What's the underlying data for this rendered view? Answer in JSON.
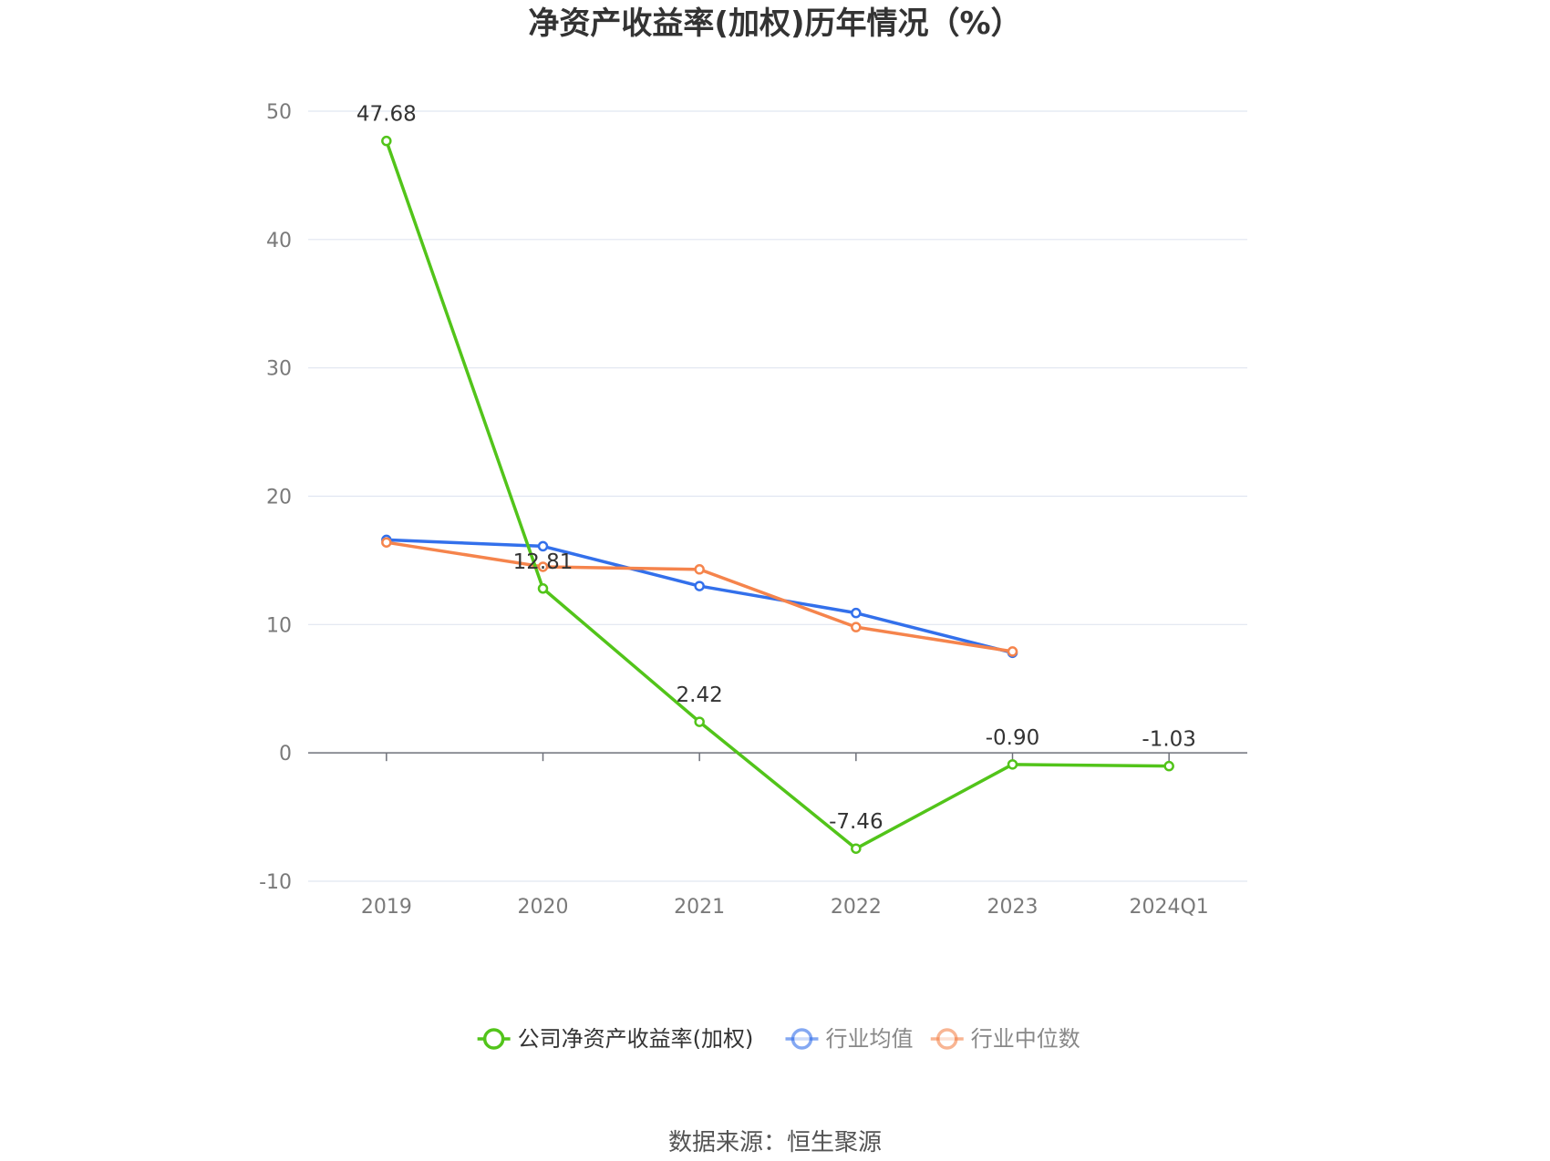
{
  "chart_data": {
    "type": "line",
    "title": "净资产收益率(加权)历年情况（%）",
    "categories": [
      "2019",
      "2020",
      "2021",
      "2022",
      "2023",
      "2024Q1"
    ],
    "ylim": [
      -10,
      50
    ],
    "yticks": [
      -10,
      0,
      10,
      20,
      30,
      40,
      50
    ],
    "grid": true,
    "legend_position": "bottom",
    "series": [
      {
        "name": "公司净资产收益率(加权)",
        "color": "#52c41a",
        "values": [
          47.68,
          12.81,
          2.42,
          -7.46,
          -0.9,
          -1.03
        ],
        "labels": [
          "47.68",
          "12.81",
          "2.42",
          "-7.46",
          "-0.90",
          "-1.03"
        ]
      },
      {
        "name": "行业均值",
        "color": "#3370eb",
        "values": [
          16.6,
          16.1,
          13.0,
          10.9,
          7.8,
          null
        ]
      },
      {
        "name": "行业中位数",
        "color": "#f5844c",
        "values": [
          16.4,
          14.5,
          14.3,
          9.8,
          7.9,
          null
        ]
      }
    ]
  },
  "source": "数据来源：恒生聚源"
}
